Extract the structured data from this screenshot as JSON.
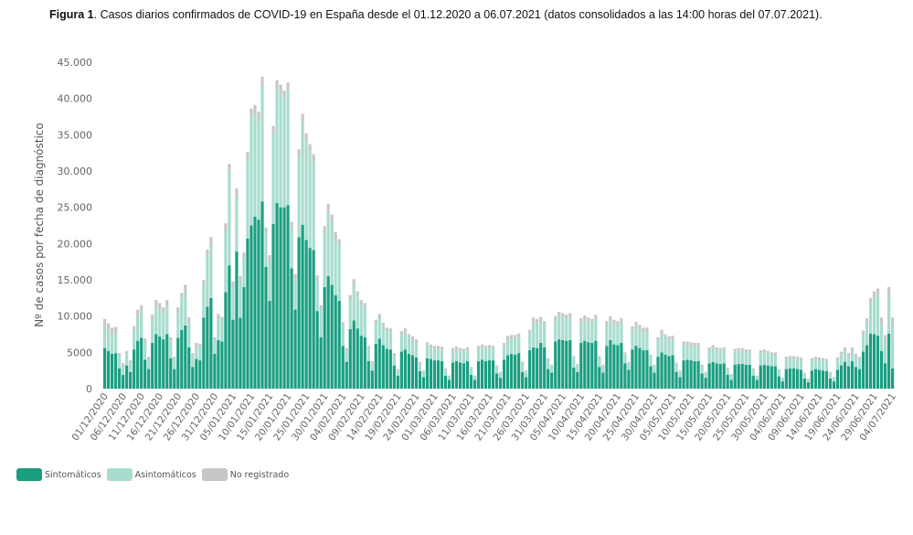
{
  "title": {
    "prefix": "Figura 1",
    "text": ". Casos diarios confirmados de COVID-19 en España desde el 01.12.2020 a 06.07.2021 (datos consolidados a las 14:00 horas del 07.07.2021)."
  },
  "chart_data": {
    "type": "bar",
    "stacked": true,
    "title": "Casos diarios confirmados de COVID-19 en España desde el 01.12.2020 a 06.07.2021 (datos consolidados a las 14:00 horas del 07.07.2021)",
    "xlabel": "",
    "ylabel": "Nº de casos por fecha de diagnóstico",
    "ylim": [
      0,
      45000
    ],
    "yticks": [
      0,
      5000,
      10000,
      15000,
      20000,
      25000,
      30000,
      35000,
      40000,
      45000
    ],
    "ytick_labels": [
      "0",
      "5000",
      "10.000",
      "15.000",
      "20.000",
      "25.000",
      "30.000",
      "35.000",
      "40.000",
      "45.000"
    ],
    "start_date": "01/12/2020",
    "end_date": "06/07/2021",
    "xtick_labels": [
      "01/12/2020",
      "06/12/2020",
      "11/12/2020",
      "16/12/2020",
      "21/12/2020",
      "26/12/2020",
      "31/12/2020",
      "05/01/2021",
      "10/01/2021",
      "15/01/2021",
      "20/01/2021",
      "25/01/2021",
      "30/01/2021",
      "04/02/2021",
      "09/02/2021",
      "14/02/2021",
      "19/02/2021",
      "24/02/2021",
      "01/03/2021",
      "06/03/2021",
      "11/03/2021",
      "16/03/2021",
      "21/03/2021",
      "26/03/2021",
      "31/03/2021",
      "05/04/2021",
      "10/04/2021",
      "15/04/2021",
      "20/04/2021",
      "25/04/2021",
      "30/04/2021",
      "05/05/2021",
      "10/05/2021",
      "15/05/2021",
      "20/05/2021",
      "25/05/2021",
      "30/05/2021",
      "04/06/2021",
      "09/06/2021",
      "14/06/2021",
      "19/06/2021",
      "24/06/2021",
      "29/06/2021",
      "04/07/2021"
    ],
    "grid": false,
    "legend_position": "bottom-left",
    "series": [
      {
        "name": "Sintomáticos",
        "color": "#1a9e80",
        "values": [
          5600,
          5200,
          4800,
          4900,
          2800,
          1900,
          3200,
          2300,
          5400,
          6600,
          7000,
          4000,
          2700,
          6300,
          7500,
          7200,
          6800,
          7500,
          4200,
          2700,
          7000,
          8100,
          8700,
          5700,
          3000,
          4100,
          3900,
          9800,
          11300,
          12500,
          4800,
          6700,
          6500,
          13300,
          17000,
          9500,
          18900,
          9800,
          14000,
          20700,
          22500,
          23700,
          23300,
          25800,
          16800,
          12100,
          22700,
          25600,
          25000,
          25000,
          25300,
          16600,
          10900,
          20900,
          22600,
          20500,
          19400,
          19100,
          10700,
          7100,
          14000,
          15500,
          14300,
          12900,
          12100,
          5900,
          3700,
          8200,
          9400,
          8300,
          7300,
          7100,
          3800,
          2500,
          6200,
          6900,
          6000,
          5500,
          5400,
          3200,
          1800,
          5100,
          5400,
          4800,
          4600,
          4300,
          2400,
          1600,
          4200,
          4100,
          3900,
          3900,
          3800,
          1800,
          1200,
          3600,
          3800,
          3600,
          3500,
          3800,
          1900,
          1200,
          3800,
          4000,
          3800,
          3900,
          3900,
          2100,
          1500,
          4000,
          4600,
          4800,
          4700,
          4900,
          2300,
          1600,
          5300,
          5700,
          5600,
          6300,
          5700,
          2700,
          2200,
          6500,
          6800,
          6700,
          6600,
          6700,
          2900,
          2300,
          6300,
          6600,
          6400,
          6300,
          6600,
          3000,
          2200,
          5900,
          6700,
          6100,
          6000,
          6300,
          3500,
          2600,
          5400,
          5900,
          5600,
          5300,
          5300,
          3100,
          2200,
          4400,
          5000,
          4700,
          4500,
          4600,
          2300,
          1600,
          3900,
          4000,
          3900,
          3800,
          3800,
          2100,
          1500,
          3500,
          3700,
          3500,
          3400,
          3500,
          1900,
          1200,
          3300,
          3400,
          3400,
          3300,
          3300,
          1800,
          1200,
          3200,
          3300,
          3200,
          3100,
          3100,
          1700,
          1000,
          2700,
          2800,
          2800,
          2700,
          2600,
          1400,
          900,
          2500,
          2700,
          2600,
          2500,
          2400,
          1400,
          1000,
          2600,
          3200,
          3700,
          3100,
          3800,
          3000,
          2700,
          5100,
          6000,
          7600,
          7500,
          7300,
          5200,
          3500,
          7600,
          2800
        ]
      },
      {
        "name": "Asintomáticos",
        "color": "#a8dccf",
        "values": [
          3100,
          3000,
          2800,
          2800,
          1600,
          1200,
          1500,
          1200,
          2500,
          3400,
          3600,
          2300,
          1300,
          3100,
          3800,
          3700,
          3500,
          3800,
          2300,
          1300,
          3400,
          4200,
          4600,
          3400,
          1500,
          1700,
          1800,
          4400,
          6900,
          7300,
          1800,
          3000,
          2800,
          8500,
          12900,
          4500,
          7500,
          4700,
          4000,
          10800,
          15000,
          14200,
          13700,
          16000,
          4600,
          5400,
          12400,
          15700,
          15700,
          15000,
          15700,
          5500,
          4200,
          11100,
          14200,
          13600,
          13200,
          12200,
          4100,
          3800,
          7500,
          9000,
          8700,
          7800,
          7600,
          2800,
          1500,
          4000,
          4900,
          4400,
          4200,
          4000,
          1700,
          1000,
          2700,
          2800,
          2500,
          2400,
          2400,
          1300,
          700,
          2300,
          2400,
          2200,
          2100,
          2000,
          1000,
          700,
          1800,
          1600,
          1600,
          1600,
          1600,
          800,
          500,
          1600,
          1600,
          1600,
          1600,
          1500,
          900,
          500,
          1700,
          1700,
          1700,
          1700,
          1600,
          900,
          600,
          1900,
          2200,
          2100,
          2200,
          2200,
          1100,
          700,
          2300,
          3500,
          3400,
          3000,
          3000,
          1200,
          900,
          2900,
          3200,
          3100,
          3000,
          3100,
          1300,
          900,
          2800,
          2900,
          2800,
          2700,
          3000,
          1200,
          900,
          2800,
          2700,
          2800,
          2700,
          2800,
          1200,
          900,
          2600,
          2700,
          2600,
          2500,
          2500,
          1300,
          900,
          2200,
          2500,
          2300,
          2200,
          2200,
          1000,
          700,
          2100,
          2000,
          2000,
          2000,
          2000,
          900,
          600,
          1800,
          1900,
          1800,
          1800,
          1800,
          800,
          600,
          1800,
          1800,
          1800,
          1700,
          1700,
          800,
          500,
          1700,
          1700,
          1600,
          1500,
          1500,
          800,
          400,
          1300,
          1300,
          1300,
          1300,
          1300,
          600,
          400,
          1300,
          1300,
          1300,
          1300,
          1300,
          700,
          500,
          1300,
          1500,
          1600,
          1400,
          1500,
          1400,
          1300,
          2400,
          3100,
          4200,
          5100,
          5600,
          3600,
          3000,
          5400,
          5800
        ]
      },
      {
        "name": "No registrado",
        "color": "#c7c7c7",
        "values": [
          900,
          800,
          800,
          800,
          500,
          400,
          500,
          400,
          700,
          900,
          900,
          600,
          400,
          800,
          900,
          900,
          900,
          900,
          600,
          400,
          800,
          900,
          1000,
          700,
          400,
          500,
          500,
          800,
          1000,
          1100,
          500,
          600,
          600,
          1000,
          1100,
          800,
          1200,
          1000,
          800,
          1100,
          1100,
          1200,
          1200,
          1200,
          800,
          900,
          1100,
          1200,
          1200,
          1100,
          1200,
          900,
          700,
          1000,
          1100,
          1100,
          1100,
          1000,
          800,
          600,
          900,
          1000,
          1000,
          900,
          900,
          500,
          400,
          700,
          800,
          700,
          700,
          700,
          400,
          300,
          600,
          600,
          600,
          500,
          500,
          400,
          200,
          500,
          500,
          500,
          500,
          500,
          300,
          200,
          400,
          400,
          400,
          400,
          400,
          200,
          100,
          400,
          400,
          400,
          400,
          400,
          200,
          100,
          400,
          400,
          400,
          400,
          400,
          200,
          200,
          400,
          500,
          500,
          500,
          500,
          300,
          200,
          500,
          600,
          600,
          600,
          600,
          300,
          200,
          600,
          600,
          600,
          600,
          600,
          300,
          200,
          600,
          600,
          600,
          600,
          600,
          300,
          200,
          600,
          600,
          600,
          600,
          600,
          300,
          200,
          600,
          600,
          600,
          600,
          600,
          300,
          200,
          500,
          600,
          500,
          500,
          500,
          300,
          200,
          500,
          500,
          500,
          500,
          500,
          300,
          200,
          400,
          400,
          400,
          400,
          400,
          200,
          200,
          400,
          400,
          400,
          400,
          400,
          200,
          100,
          400,
          400,
          400,
          400,
          400,
          200,
          100,
          400,
          400,
          400,
          400,
          400,
          200,
          100,
          400,
          400,
          400,
          400,
          400,
          200,
          100,
          400,
          400,
          400,
          400,
          400,
          400,
          400,
          500,
          600,
          700,
          800,
          900,
          1000,
          900,
          1000,
          1200
        ]
      }
    ]
  },
  "legend": {
    "items": [
      {
        "label": "Sintomáticos",
        "color": "#1a9e80"
      },
      {
        "label": "Asintomáticos",
        "color": "#a8dccf"
      },
      {
        "label": "No registrado",
        "color": "#c7c7c7"
      }
    ]
  }
}
